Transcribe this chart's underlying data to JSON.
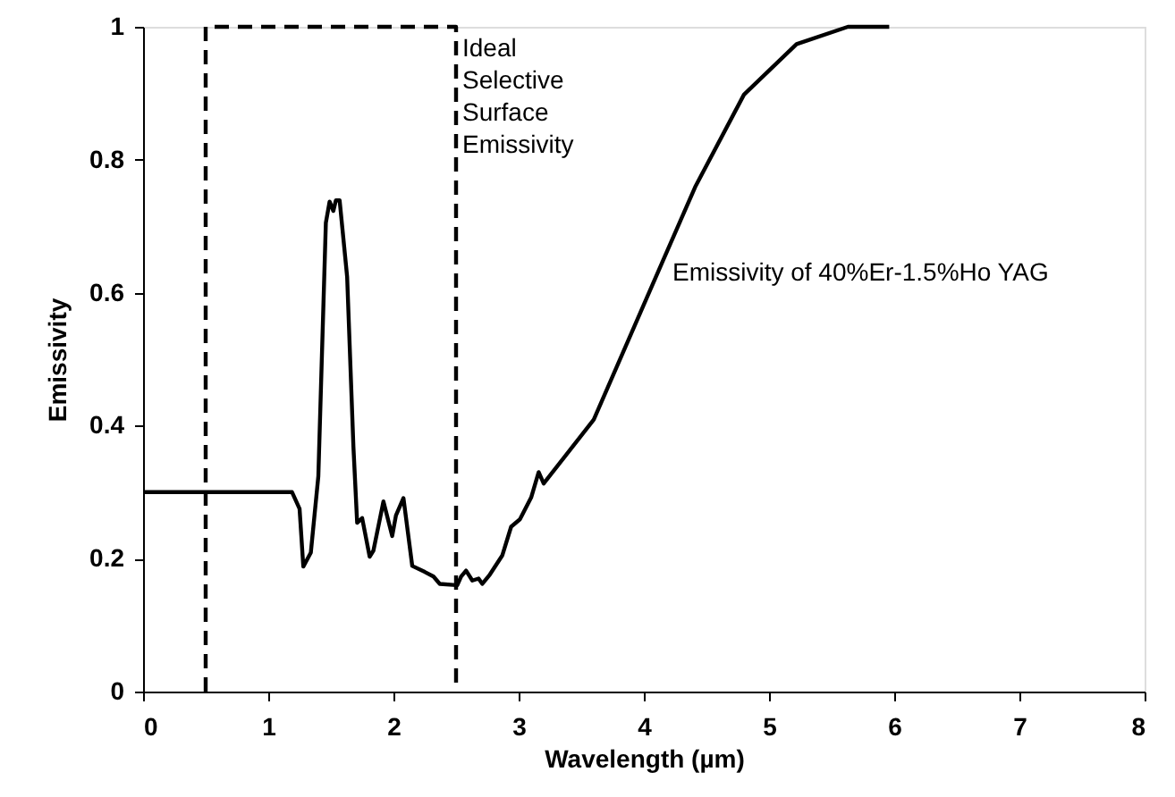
{
  "chart_data": {
    "type": "line",
    "xlabel": "Wavelength (µm)",
    "ylabel": "Emissivity",
    "xlim": [
      0,
      8
    ],
    "xticks": [
      0,
      1,
      2,
      3,
      4,
      5,
      6,
      7,
      8
    ],
    "ylim": [
      0,
      1
    ],
    "yticks": [
      0,
      0.2,
      0.4,
      0.6,
      0.8,
      1
    ],
    "grid": false,
    "marker": "none",
    "series": [
      {
        "color": "#000000",
        "line_style": "dashed",
        "x": [
          0.5,
          0.5,
          2.5,
          2.5
        ],
        "values": [
          0,
          1,
          1,
          0
        ]
      },
      {
        "color": "#000000",
        "line_style": "solid",
        "x": [
          0,
          1.19,
          1.25,
          1.28,
          1.34,
          1.4,
          1.46,
          1.49,
          1.52,
          1.54,
          1.57,
          1.63,
          1.68,
          1.71,
          1.75,
          1.81,
          1.84,
          1.92,
          1.99,
          2.02,
          2.08,
          2.15,
          2.25,
          2.32,
          2.37,
          2.51,
          2.54,
          2.58,
          2.63,
          2.68,
          2.71,
          2.77,
          2.87,
          2.94,
          3.01,
          3.1,
          3.16,
          3.2,
          3.6,
          4.15,
          4.41,
          4.8,
          5.22,
          5.63,
          5.96
        ],
        "values": [
          0.3,
          0.3,
          0.275,
          0.188,
          0.209,
          0.324,
          0.705,
          0.737,
          0.723,
          0.739,
          0.739,
          0.624,
          0.369,
          0.254,
          0.261,
          0.203,
          0.212,
          0.286,
          0.234,
          0.265,
          0.291,
          0.189,
          0.18,
          0.173,
          0.162,
          0.16,
          0.173,
          0.182,
          0.167,
          0.17,
          0.162,
          0.176,
          0.205,
          0.248,
          0.259,
          0.292,
          0.33,
          0.313,
          0.409,
          0.647,
          0.759,
          0.898,
          0.974,
          1.0,
          1.0
        ]
      }
    ],
    "annotations": [
      {
        "text": "Ideal\nSelective\nSurface\nEmissivity",
        "x": 2.55,
        "y": 0.985
      },
      "Emissivity of 40%Er-1.5%Ho YAG"
    ]
  }
}
